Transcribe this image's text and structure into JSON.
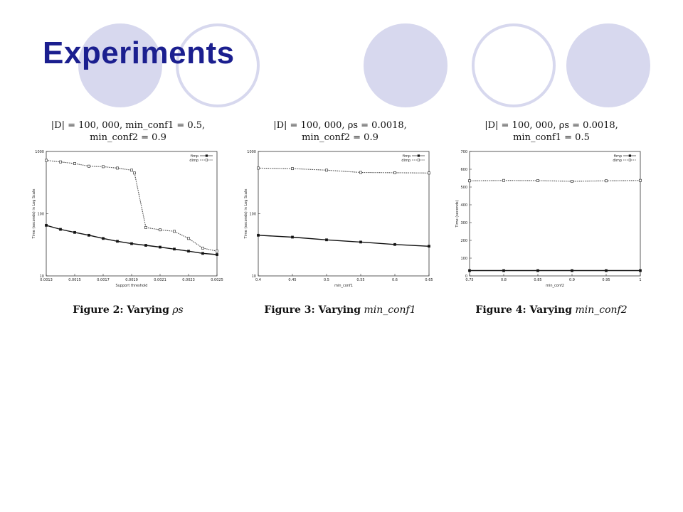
{
  "slide": {
    "title": "Experiments",
    "accent_color": "#1b1f8f",
    "circle_color": "#d7d8ee"
  },
  "chart_data": [
    {
      "type": "line",
      "header_line1": "|D| = 100, 000, min_conf1 = 0.5,",
      "header_line2": "min_conf2 = 0.9",
      "figure_label": "Figure 2: Varying",
      "figure_var": "ρs",
      "xlabel": "Support threshold",
      "ylabel": "Time (seconds) in Log Scale",
      "y_scale": "log",
      "xlim": [
        0.0013,
        0.0025
      ],
      "ylim": [
        10,
        1000
      ],
      "x_ticks": [
        0.0013,
        0.0015,
        0.0017,
        0.0019,
        0.0021,
        0.0023,
        0.0025
      ],
      "x_tick_labels": [
        "0.0013",
        "0.0015",
        "0.0017",
        "0.0019",
        "0.0021",
        "0.0023",
        "0.0025"
      ],
      "y_ticks": [
        10,
        100,
        1000
      ],
      "y_tick_labels": [
        "10",
        "100",
        "1000"
      ],
      "legend_position": "top-right",
      "series": [
        {
          "name": "fimp",
          "style": "solid",
          "x": [
            0.0013,
            0.0014,
            0.0015,
            0.0016,
            0.0017,
            0.0018,
            0.0019,
            0.002,
            0.0021,
            0.0022,
            0.0023,
            0.0024,
            0.0025
          ],
          "y": [
            65,
            56,
            50,
            45,
            40,
            36,
            33,
            31,
            29,
            27,
            25,
            23,
            22
          ]
        },
        {
          "name": "dimp",
          "style": "dotted",
          "x": [
            0.0013,
            0.0014,
            0.0015,
            0.0016,
            0.0017,
            0.0018,
            0.0019,
            0.00192,
            0.002,
            0.0021,
            0.0022,
            0.0023,
            0.0024,
            0.0025
          ],
          "y": [
            720,
            680,
            640,
            580,
            570,
            540,
            500,
            450,
            60,
            55,
            52,
            40,
            28,
            25
          ]
        }
      ]
    },
    {
      "type": "line",
      "header_line1": "|D| = 100, 000, ρs = 0.0018,",
      "header_line2": "min_conf2 = 0.9",
      "figure_label": "Figure 3: Varying",
      "figure_var": "min_conf1",
      "xlabel": "min_conf1",
      "ylabel": "Time (seconds) in Log Scale",
      "y_scale": "log",
      "xlim": [
        0.4,
        0.65
      ],
      "ylim": [
        10,
        1000
      ],
      "x_ticks": [
        0.4,
        0.45,
        0.5,
        0.55,
        0.6,
        0.65
      ],
      "x_tick_labels": [
        "0.4",
        "0.45",
        "0.5",
        "0.55",
        "0.6",
        "0.65"
      ],
      "y_ticks": [
        10,
        100,
        1000
      ],
      "y_tick_labels": [
        "10",
        "100",
        "1000"
      ],
      "legend_position": "top-right",
      "series": [
        {
          "name": "fimp",
          "style": "solid",
          "x": [
            0.4,
            0.45,
            0.5,
            0.55,
            0.6,
            0.65
          ],
          "y": [
            45,
            42,
            38,
            35,
            32,
            30
          ]
        },
        {
          "name": "dimp",
          "style": "dotted",
          "x": [
            0.4,
            0.45,
            0.5,
            0.55,
            0.6,
            0.65
          ],
          "y": [
            540,
            530,
            500,
            460,
            455,
            450
          ]
        }
      ]
    },
    {
      "type": "line",
      "header_line1": "|D| = 100, 000, ρs = 0.0018,",
      "header_line2": "min_conf1 = 0.5",
      "figure_label": "Figure 4: Varying",
      "figure_var": "min_conf2",
      "xlabel": "min_conf2",
      "ylabel": "Time (seconds)",
      "y_scale": "linear",
      "xlim": [
        0.75,
        1
      ],
      "ylim": [
        0,
        700
      ],
      "x_ticks": [
        0.75,
        0.8,
        0.85,
        0.9,
        0.95,
        1
      ],
      "x_tick_labels": [
        "0.75",
        "0.8",
        "0.85",
        "0.9",
        "0.95",
        "1"
      ],
      "y_ticks": [
        0,
        100,
        200,
        300,
        400,
        500,
        600,
        700
      ],
      "y_tick_labels": [
        "0",
        "100",
        "200",
        "300",
        "400",
        "500",
        "600",
        "700"
      ],
      "legend_position": "top-right",
      "series": [
        {
          "name": "fimp",
          "style": "solid",
          "x": [
            0.75,
            0.8,
            0.85,
            0.9,
            0.95,
            1
          ],
          "y": [
            30,
            30,
            30,
            30,
            30,
            30
          ]
        },
        {
          "name": "dimp",
          "style": "dotted",
          "x": [
            0.75,
            0.8,
            0.85,
            0.9,
            0.95,
            1
          ],
          "y": [
            535,
            537,
            536,
            532,
            535,
            537
          ]
        }
      ]
    }
  ]
}
